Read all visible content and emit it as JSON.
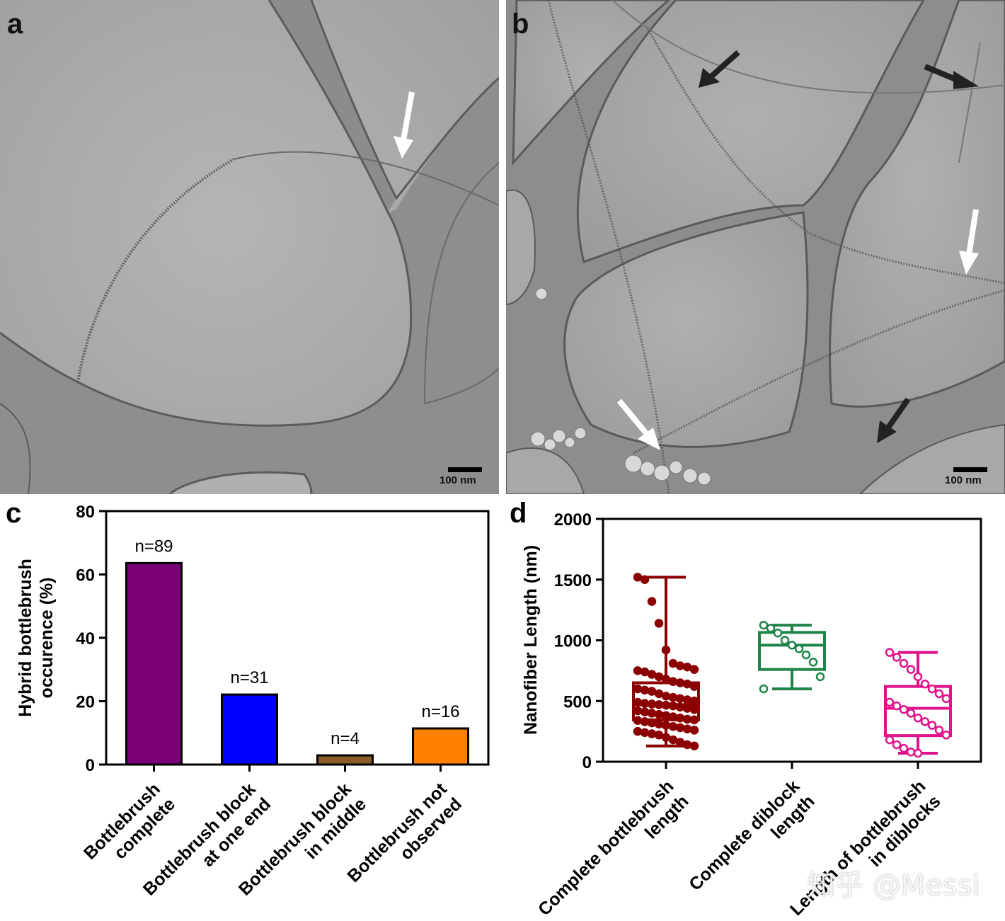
{
  "panels": {
    "a": {
      "letter": "a",
      "scale_label": "100 nm"
    },
    "b": {
      "letter": "b",
      "scale_label": "100 nm"
    },
    "c": {
      "letter": "c"
    },
    "d": {
      "letter": "d"
    }
  },
  "watermark": "知乎 @Messi",
  "colors": {
    "purple": "#7a0077",
    "blue": "#0000ff",
    "brown": "#8b5a2b",
    "orange": "#ff8000",
    "dark_red": "#8b0000",
    "green": "#1e8449",
    "magenta": "#e0128a"
  },
  "chart_data": [
    {
      "type": "bar",
      "panel": "c",
      "ylabel_lines": [
        "Hybrid bottlebrush",
        "occurence (%)"
      ],
      "ylim": [
        0,
        80
      ],
      "yticks": [
        0,
        20,
        40,
        60,
        80
      ],
      "categories": [
        {
          "lines": [
            "Bottlebrush",
            "complete"
          ]
        },
        {
          "lines": [
            "Bottlebrush block",
            "at one end"
          ]
        },
        {
          "lines": [
            "Bottlebrush block",
            "in middle"
          ]
        },
        {
          "lines": [
            "Bottlebrush not",
            "observed"
          ]
        }
      ],
      "values": [
        63.6,
        22.1,
        2.9,
        11.4
      ],
      "bar_labels": [
        "n=89",
        "n=31",
        "n=4",
        "n=16"
      ],
      "bar_colors": [
        "#7a0077",
        "#0000ff",
        "#8b5a2b",
        "#ff8000"
      ]
    },
    {
      "type": "box",
      "panel": "d",
      "ylabel": "Nanofiber Length (nm)",
      "ylim": [
        0,
        2000
      ],
      "yticks": [
        0,
        500,
        1000,
        1500,
        2000
      ],
      "series": [
        {
          "category_lines": [
            "Complete bottlebrush",
            "length"
          ],
          "color": "#8b0000",
          "filled": true,
          "min": 130,
          "q1": 345,
          "median": 470,
          "q3": 650,
          "max": 1520,
          "points": [
            1520,
            1500,
            1320,
            1140,
            920,
            810,
            790,
            780,
            760,
            750,
            740,
            720,
            700,
            680,
            660,
            650,
            640,
            620,
            600,
            590,
            580,
            560,
            540,
            530,
            520,
            510,
            500,
            490,
            480,
            475,
            470,
            465,
            460,
            450,
            440,
            430,
            420,
            410,
            400,
            390,
            380,
            370,
            360,
            350,
            345,
            340,
            330,
            320,
            310,
            300,
            290,
            280,
            270,
            260,
            250,
            240,
            230,
            220,
            200,
            180,
            160,
            140,
            130
          ]
        },
        {
          "category_lines": [
            "Complete diblock",
            "length"
          ],
          "color": "#1e8449",
          "filled": false,
          "min": 600,
          "q1": 760,
          "median": 960,
          "q3": 1065,
          "max": 1125,
          "points": [
            1125,
            1100,
            1060,
            1000,
            960,
            930,
            880,
            820,
            700,
            600
          ]
        },
        {
          "category_lines": [
            "Length of bottlebrush",
            "in diblocks"
          ],
          "color": "#e0128a",
          "filled": false,
          "min": 70,
          "q1": 215,
          "median": 440,
          "q3": 620,
          "max": 900,
          "points": [
            900,
            860,
            810,
            760,
            700,
            640,
            600,
            560,
            520,
            490,
            460,
            430,
            400,
            360,
            330,
            300,
            260,
            220,
            180,
            140,
            110,
            80,
            70
          ]
        }
      ]
    }
  ]
}
